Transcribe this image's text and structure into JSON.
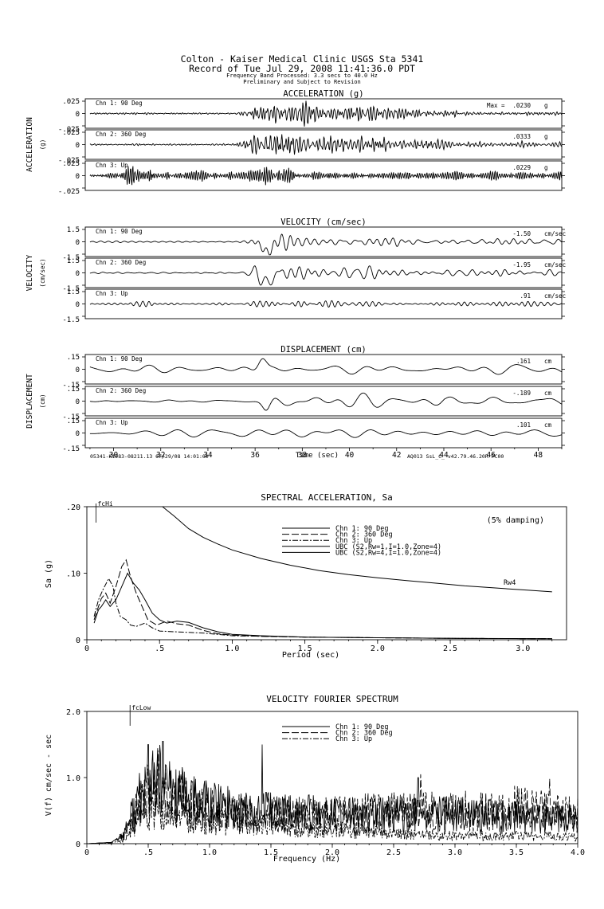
{
  "header": {
    "line1": "Colton - Kaiser Medical Clinic    USGS Sta 5341",
    "line2": "Record of Tue Jul 29, 2008 11:41:36.0 PDT",
    "line3": "Frequency Band Processed: 3.3 secs to 40.0 Hz",
    "line4": "Preliminary and Subject to Revision"
  },
  "footer": {
    "left": "05341-K1983-08211.13 07/29/08 14:01:00",
    "right": "AQ013  SsL_C_  v42.79.46.20R PC00"
  },
  "chart_data": [
    {
      "type": "line",
      "title": "ACCELERATION (g)",
      "ylabel": "ACCELERATION",
      "yunit": "(g)",
      "xlim": [
        28.8,
        49.0
      ],
      "channels": [
        {
          "name": "Chn 1: 90 Deg",
          "peak_prefix": "Max = ",
          "peak": ".0230",
          "unit": "g",
          "ticks": [
            ".025",
            "0",
            "-.025"
          ],
          "ylim": [
            -0.025,
            0.025
          ],
          "style": "accel1"
        },
        {
          "name": "Chn 2: 360 Deg",
          "peak_prefix": "",
          "peak": ".0333",
          "unit": "g",
          "ticks": [
            ".025",
            "0",
            "-.025"
          ],
          "ylim": [
            -0.025,
            0.025
          ],
          "style": "accel2"
        },
        {
          "name": "Chn 3: Up",
          "peak_prefix": "",
          "peak": ".0229",
          "unit": "g",
          "ticks": [
            ".025",
            "0",
            "-.025"
          ],
          "ylim": [
            -0.025,
            0.025
          ],
          "style": "accel3"
        }
      ]
    },
    {
      "type": "line",
      "title": "VELOCITY (cm/sec)",
      "ylabel": "VELOCITY",
      "yunit": "(cm/sec)",
      "xlim": [
        28.8,
        49.0
      ],
      "channels": [
        {
          "name": "Chn 1: 90 Deg",
          "peak_prefix": "",
          "peak": "-1.50",
          "unit": "cm/sec",
          "ticks": [
            "1.5",
            "0",
            "-1.5"
          ],
          "ylim": [
            -1.5,
            1.5
          ],
          "style": "vel1"
        },
        {
          "name": "Chn 2: 360 Deg",
          "peak_prefix": "",
          "peak": "-1.95",
          "unit": "cm/sec",
          "ticks": [
            "1.5",
            "0",
            "-1.5"
          ],
          "ylim": [
            -1.5,
            1.5
          ],
          "style": "vel2"
        },
        {
          "name": "Chn 3: Up",
          "peak_prefix": "",
          "peak": ".91",
          "unit": "cm/sec",
          "ticks": [
            "1.5",
            "0",
            "-1.5"
          ],
          "ylim": [
            -1.5,
            1.5
          ],
          "style": "vel3"
        }
      ]
    },
    {
      "type": "line",
      "title": "DISPLACEMENT (cm)",
      "ylabel": "DISPLACEMENT",
      "yunit": "(cm)",
      "xlabel": "Time (sec)",
      "xlim": [
        28.8,
        49.0
      ],
      "xticks": [
        "30",
        "32",
        "34",
        "36",
        "38",
        "40",
        "42",
        "44",
        "46",
        "48"
      ],
      "channels": [
        {
          "name": "Chn 1: 90 Deg",
          "peak_prefix": "",
          "peak": ".161",
          "unit": "cm",
          "ticks": [
            ".15",
            "0",
            "-.15"
          ],
          "ylim": [
            -0.15,
            0.15
          ],
          "style": "disp1"
        },
        {
          "name": "Chn 2: 360 Deg",
          "peak_prefix": "",
          "peak": "-.189",
          "unit": "cm",
          "ticks": [
            ".15",
            "0",
            "-.15"
          ],
          "ylim": [
            -0.15,
            0.15
          ],
          "style": "disp2"
        },
        {
          "name": "Chn 3: Up",
          "peak_prefix": "",
          "peak": ".101",
          "unit": "cm",
          "ticks": [
            ".15",
            "0",
            "-.15"
          ],
          "ylim": [
            -0.15,
            0.15
          ],
          "style": "disp3"
        }
      ]
    },
    {
      "type": "line",
      "title": "SPECTRAL ACCELERATION, Sa",
      "note": "(5% damping)",
      "xlabel": "Period (sec)",
      "ylabel": "Sa (g)",
      "xlim": [
        0,
        3.3
      ],
      "ylim": [
        0,
        0.2
      ],
      "xticks": [
        {
          "v": 0,
          "t": "0"
        },
        {
          "v": 0.5,
          "t": ".5"
        },
        {
          "v": 1.0,
          "t": "1.0"
        },
        {
          "v": 1.5,
          "t": "1.5"
        },
        {
          "v": 2.0,
          "t": "2.0"
        },
        {
          "v": 2.5,
          "t": "2.5"
        },
        {
          "v": 3.0,
          "t": "3.0"
        }
      ],
      "yticks": [
        {
          "v": 0,
          "t": "0"
        },
        {
          "v": 0.1,
          "t": ".10"
        },
        {
          "v": 0.2,
          "t": ".20"
        }
      ],
      "markers": [
        {
          "label": "fcHi",
          "x": 0.03
        }
      ],
      "curve_label": "Rw4",
      "legend": [
        "Chn 1: 90 Deg",
        "Chn 2: 360 Deg",
        "Chn 3: Up",
        "UBC (S2,Rw=1,I=1.0,Zone=4)",
        "UBC (S2,Rw=4,I=1.0,Zone=4)"
      ],
      "series": [
        {
          "name": "Chn 1: 90 Deg",
          "dash": "",
          "points": [
            [
              0.05,
              0.025
            ],
            [
              0.08,
              0.045
            ],
            [
              0.1,
              0.05
            ],
            [
              0.13,
              0.06
            ],
            [
              0.16,
              0.05
            ],
            [
              0.2,
              0.06
            ],
            [
              0.24,
              0.08
            ],
            [
              0.28,
              0.1
            ],
            [
              0.32,
              0.085
            ],
            [
              0.36,
              0.075
            ],
            [
              0.4,
              0.06
            ],
            [
              0.45,
              0.04
            ],
            [
              0.5,
              0.03
            ],
            [
              0.55,
              0.025
            ],
            [
              0.62,
              0.028
            ],
            [
              0.7,
              0.026
            ],
            [
              0.8,
              0.018
            ],
            [
              0.9,
              0.012
            ],
            [
              1.0,
              0.008
            ],
            [
              1.2,
              0.006
            ],
            [
              1.5,
              0.004
            ],
            [
              2.0,
              0.003
            ],
            [
              2.5,
              0.002
            ],
            [
              3.2,
              0.0015
            ]
          ]
        },
        {
          "name": "Chn 2: 360 Deg",
          "dash": "9 3",
          "points": [
            [
              0.05,
              0.03
            ],
            [
              0.08,
              0.05
            ],
            [
              0.1,
              0.062
            ],
            [
              0.13,
              0.07
            ],
            [
              0.16,
              0.055
            ],
            [
              0.2,
              0.08
            ],
            [
              0.24,
              0.11
            ],
            [
              0.27,
              0.12
            ],
            [
              0.3,
              0.095
            ],
            [
              0.34,
              0.07
            ],
            [
              0.38,
              0.05
            ],
            [
              0.42,
              0.03
            ],
            [
              0.48,
              0.022
            ],
            [
              0.55,
              0.028
            ],
            [
              0.62,
              0.024
            ],
            [
              0.7,
              0.022
            ],
            [
              0.8,
              0.014
            ],
            [
              0.9,
              0.009
            ],
            [
              1.0,
              0.007
            ],
            [
              1.2,
              0.005
            ],
            [
              1.5,
              0.004
            ],
            [
              2.0,
              0.003
            ],
            [
              2.5,
              0.002
            ],
            [
              3.2,
              0.0015
            ]
          ]
        },
        {
          "name": "Chn 3: Up",
          "dash": "7 2 2 2",
          "points": [
            [
              0.05,
              0.035
            ],
            [
              0.08,
              0.06
            ],
            [
              0.11,
              0.075
            ],
            [
              0.15,
              0.092
            ],
            [
              0.18,
              0.08
            ],
            [
              0.2,
              0.055
            ],
            [
              0.23,
              0.035
            ],
            [
              0.27,
              0.03
            ],
            [
              0.3,
              0.022
            ],
            [
              0.34,
              0.02
            ],
            [
              0.4,
              0.025
            ],
            [
              0.45,
              0.018
            ],
            [
              0.5,
              0.013
            ],
            [
              0.6,
              0.012
            ],
            [
              0.7,
              0.011
            ],
            [
              0.8,
              0.01
            ],
            [
              0.9,
              0.008
            ],
            [
              1.0,
              0.006
            ],
            [
              1.5,
              0.004
            ],
            [
              2.0,
              0.003
            ],
            [
              2.5,
              0.002
            ],
            [
              3.2,
              0.0015
            ]
          ]
        },
        {
          "name": "UBC (S2,Rw=4,I=1.0,Zone=4)",
          "dash": "",
          "points": [
            [
              0.52,
              0.2
            ],
            [
              0.6,
              0.186
            ],
            [
              0.7,
              0.167
            ],
            [
              0.8,
              0.154
            ],
            [
              0.9,
              0.144
            ],
            [
              1.0,
              0.135
            ],
            [
              1.2,
              0.122
            ],
            [
              1.4,
              0.112
            ],
            [
              1.6,
              0.104
            ],
            [
              1.8,
              0.098
            ],
            [
              2.0,
              0.093
            ],
            [
              2.2,
              0.089
            ],
            [
              2.4,
              0.085
            ],
            [
              2.6,
              0.081
            ],
            [
              2.8,
              0.078
            ],
            [
              3.0,
              0.075
            ],
            [
              3.2,
              0.072
            ]
          ]
        }
      ]
    },
    {
      "type": "line",
      "title": "VELOCITY FOURIER SPECTRUM",
      "xlabel": "Frequency (Hz)",
      "ylabel": "V(f)   cm/sec - sec",
      "xlim": [
        0,
        4.0
      ],
      "ylim": [
        0,
        2.0
      ],
      "xticks": [
        {
          "v": 0,
          "t": "0"
        },
        {
          "v": 0.5,
          "t": ".5"
        },
        {
          "v": 1.0,
          "t": "1.0"
        },
        {
          "v": 1.5,
          "t": "1.5"
        },
        {
          "v": 2.0,
          "t": "2.0"
        },
        {
          "v": 2.5,
          "t": "2.5"
        },
        {
          "v": 3.0,
          "t": "3.0"
        },
        {
          "v": 3.5,
          "t": "3.5"
        },
        {
          "v": 4.0,
          "t": "4.0"
        }
      ],
      "yticks": [
        {
          "v": 0,
          "t": "0"
        },
        {
          "v": 1.0,
          "t": "1.0"
        },
        {
          "v": 2.0,
          "t": "2.0"
        }
      ],
      "markers": [
        {
          "label": "fcLow",
          "x": 0.3
        }
      ],
      "legend": [
        "Chn 1: 90 Deg",
        "Chn 2: 360 Deg",
        "Chn 3: Up"
      ],
      "series": [
        {
          "name": "Chn 1: 90 Deg",
          "dash": "",
          "envelope": [
            [
              0,
              0
            ],
            [
              0.2,
              0.02
            ],
            [
              0.3,
              0.15
            ],
            [
              0.4,
              0.6
            ],
            [
              0.5,
              0.9
            ],
            [
              0.6,
              0.95
            ],
            [
              0.8,
              0.7
            ],
            [
              1.0,
              0.6
            ],
            [
              1.4,
              0.5
            ],
            [
              2.0,
              0.45
            ],
            [
              2.5,
              0.45
            ],
            [
              3.0,
              0.45
            ],
            [
              3.5,
              0.4
            ],
            [
              4.0,
              0.35
            ]
          ],
          "peaks": [
            [
              0.5,
              1.5
            ],
            [
              0.62,
              1.55
            ],
            [
              1.43,
              1.5
            ],
            [
              2.7,
              1.0
            ]
          ]
        },
        {
          "name": "Chn 2: 360 Deg",
          "dash": "9 3",
          "envelope": [
            [
              0,
              0
            ],
            [
              0.2,
              0.02
            ],
            [
              0.3,
              0.12
            ],
            [
              0.4,
              0.5
            ],
            [
              0.5,
              0.8
            ],
            [
              0.6,
              0.85
            ],
            [
              0.8,
              0.65
            ],
            [
              1.0,
              0.55
            ],
            [
              1.5,
              0.45
            ],
            [
              2.0,
              0.45
            ],
            [
              2.5,
              0.5
            ],
            [
              3.0,
              0.5
            ],
            [
              3.5,
              0.55
            ],
            [
              4.0,
              0.45
            ]
          ],
          "peaks": [
            [
              0.58,
              1.4
            ],
            [
              2.72,
              1.05
            ],
            [
              3.77,
              0.98
            ]
          ]
        },
        {
          "name": "Chn 3: Up",
          "dash": "7 2 2 2",
          "envelope": [
            [
              0,
              0
            ],
            [
              0.2,
              0.01
            ],
            [
              0.3,
              0.06
            ],
            [
              0.4,
              0.25
            ],
            [
              0.5,
              0.45
            ],
            [
              0.7,
              0.45
            ],
            [
              1.0,
              0.35
            ],
            [
              1.5,
              0.3
            ],
            [
              2.0,
              0.22
            ],
            [
              2.5,
              0.15
            ],
            [
              3.0,
              0.12
            ],
            [
              3.5,
              0.12
            ],
            [
              4.0,
              0.1
            ]
          ],
          "peaks": []
        }
      ]
    }
  ]
}
